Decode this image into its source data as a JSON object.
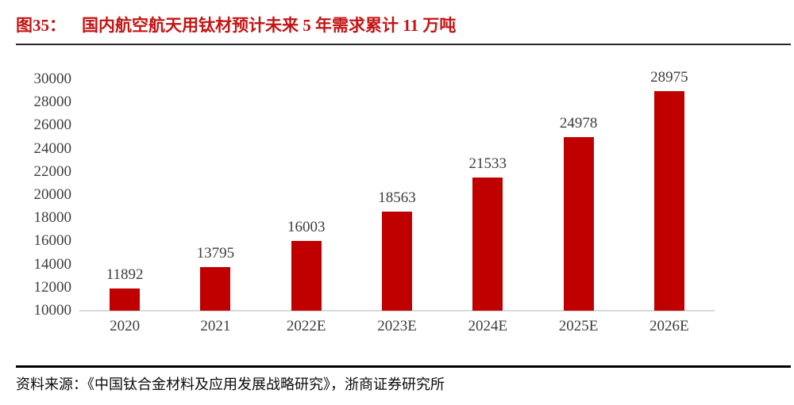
{
  "figure": {
    "label": "图35：",
    "title": "国内航空航天用钛材预计未来 5 年需求累计 11 万吨",
    "source": "资料来源：《中国钛合金材料及应用发展战略研究》，浙商证券研究所"
  },
  "colors": {
    "bar": "#c00000",
    "title_red": "#c41414",
    "axis_text": "#3d3d3d",
    "baseline": "#d9d9d9"
  },
  "chart_data": {
    "type": "bar",
    "title": "国内航空航天用钛材预计未来 5 年需求累计 11 万吨",
    "categories": [
      "2020",
      "2021",
      "2022E",
      "2023E",
      "2024E",
      "2025E",
      "2026E"
    ],
    "values": [
      11892,
      13795,
      16003,
      18563,
      21533,
      24978,
      28975
    ],
    "xlabel": "",
    "ylabel": "",
    "ylim": [
      10000,
      30000
    ],
    "ytick_step": 2000,
    "grid": false,
    "legend": "none",
    "data_labels": true
  }
}
